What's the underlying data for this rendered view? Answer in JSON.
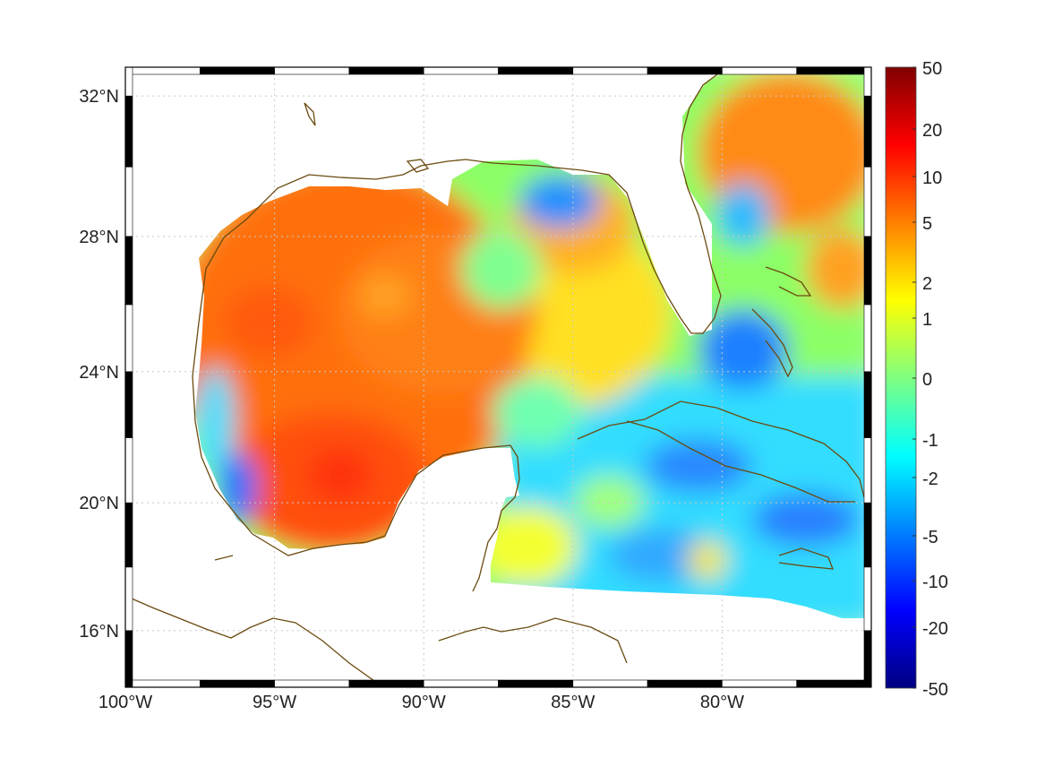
{
  "map": {
    "projection": "mercator",
    "lon_range": [
      -100,
      -75
    ],
    "lat_range": [
      14.2,
      32.8
    ],
    "lon_ticks": [
      {
        "value": -100,
        "label": "100°W"
      },
      {
        "value": -95,
        "label": "95°W"
      },
      {
        "value": -90,
        "label": "90°W"
      },
      {
        "value": -85,
        "label": "85°W"
      },
      {
        "value": -80,
        "label": "80°W"
      }
    ],
    "lat_ticks": [
      {
        "value": 16,
        "label": "16°N"
      },
      {
        "value": 20,
        "label": "20°N"
      },
      {
        "value": 24,
        "label": "24°N"
      },
      {
        "value": 28,
        "label": "28°N"
      },
      {
        "value": 32,
        "label": "32°N"
      }
    ],
    "grid": "dotted",
    "frame": "black-white checkered",
    "coastline_color": "#6b4a10"
  },
  "colorbar": {
    "colormap": "jet",
    "scale": "nonlinear",
    "range": [
      -50,
      50
    ],
    "ticks": [
      "50",
      "20",
      "10",
      "5",
      "2",
      "1",
      "0",
      "-1",
      "-2",
      "-5",
      "-10",
      "-20",
      "-50"
    ]
  },
  "field_regions": {
    "western_gulf": "orange-red (5–10)",
    "southwest_gulf_peak": "red (~10)",
    "northeast_gulf_loop": "blue (~-2 to -5)",
    "central_eastern_gulf": "yellow-green (~0 to 2)",
    "caribbean": "cyan-blue (~-1 to -5)",
    "atlantic_north_of_bahamas": "orange (~5)",
    "bahamas": "blue (~-5)"
  }
}
